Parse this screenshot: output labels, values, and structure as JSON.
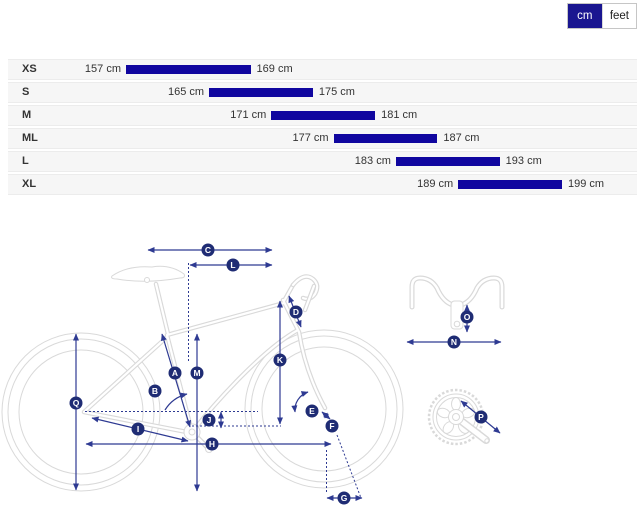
{
  "unit_toggle": {
    "options": [
      {
        "label": "cm",
        "selected": true
      },
      {
        "label": "feet",
        "selected": false
      }
    ]
  },
  "size_table": {
    "unit": "cm",
    "rows": [
      {
        "size": "XS",
        "from": 157,
        "to": 169
      },
      {
        "size": "S",
        "from": 165,
        "to": 175
      },
      {
        "size": "M",
        "from": 171,
        "to": 181
      },
      {
        "size": "ML",
        "from": 177,
        "to": 187
      },
      {
        "size": "L",
        "from": 183,
        "to": 193
      },
      {
        "size": "XL",
        "from": 189,
        "to": 199
      }
    ]
  },
  "diagram": {
    "labels": [
      "A",
      "B",
      "C",
      "D",
      "E",
      "F",
      "G",
      "H",
      "I",
      "J",
      "K",
      "L",
      "M",
      "N",
      "O",
      "P",
      "Q"
    ]
  },
  "colors": {
    "bar": "#10069f",
    "toggle_selected_bg": "#1a1690",
    "label_circle": "#1f2c74",
    "arrow": "#2e3a92",
    "bike_outline": "#d9d9d9"
  }
}
